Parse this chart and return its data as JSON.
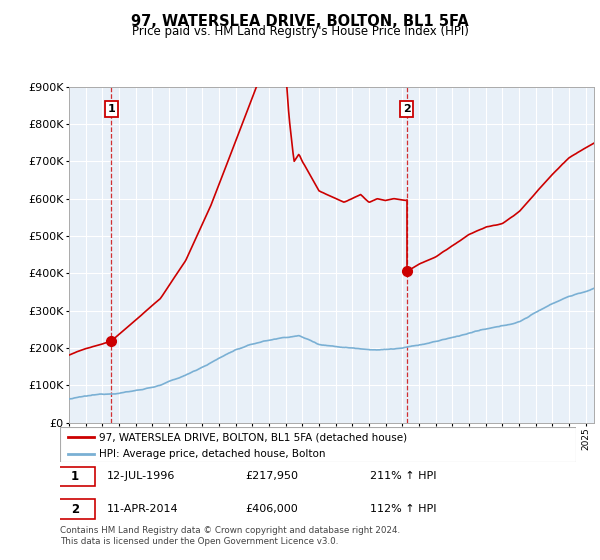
{
  "title": "97, WATERSLEA DRIVE, BOLTON, BL1 5FA",
  "subtitle": "Price paid vs. HM Land Registry's House Price Index (HPI)",
  "ylim": [
    0,
    900000
  ],
  "yticks": [
    0,
    100000,
    200000,
    300000,
    400000,
    500000,
    600000,
    700000,
    800000,
    900000
  ],
  "xlim_start": 1994.0,
  "xlim_end": 2025.5,
  "sale1_date": 1996.54,
  "sale1_price": 217950,
  "sale2_date": 2014.27,
  "sale2_price": 406000,
  "property_line_color": "#cc0000",
  "hpi_line_color": "#7ab0d4",
  "dashed_line_color": "#cc0000",
  "marker_color": "#cc0000",
  "label_box_color": "#cc0000",
  "chart_bg_color": "#e8f0f8",
  "grid_color": "#ffffff",
  "legend_property_label": "97, WATERSLEA DRIVE, BOLTON, BL1 5FA (detached house)",
  "legend_hpi_label": "HPI: Average price, detached house, Bolton",
  "sale1_date_str": "12-JUL-1996",
  "sale1_price_str": "£217,950",
  "sale1_hpi_str": "211% ↑ HPI",
  "sale2_date_str": "11-APR-2014",
  "sale2_price_str": "£406,000",
  "sale2_hpi_str": "112% ↑ HPI",
  "footer": "Contains HM Land Registry data © Crown copyright and database right 2024.\nThis data is licensed under the Open Government Licence v3.0."
}
